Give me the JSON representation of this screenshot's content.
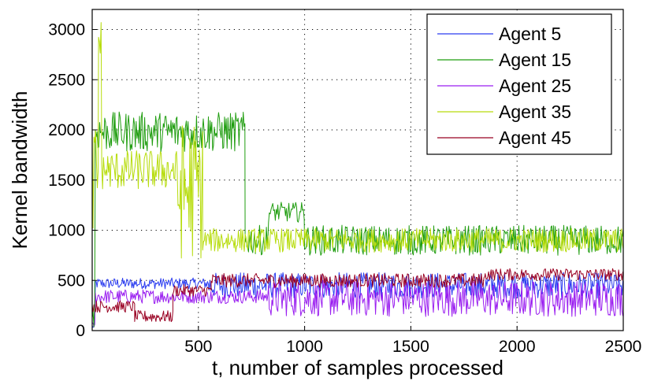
{
  "chart_data": {
    "type": "line",
    "title": "",
    "xlabel": "t, number of samples processed",
    "ylabel": "Kernel bandwidth",
    "xlim": [
      0,
      2500
    ],
    "ylim": [
      0,
      3200
    ],
    "xticks": [
      500,
      1000,
      1500,
      2000,
      2500
    ],
    "yticks": [
      0,
      500,
      1000,
      1500,
      2000,
      2500,
      3000
    ],
    "grid": true,
    "legend_position": "top-right",
    "series": [
      {
        "name": "Agent 5",
        "color": "#2a3cf0",
        "segments": [
          {
            "from": 0,
            "to": 15,
            "base": 40,
            "amp": 20
          },
          {
            "from": 15,
            "to": 550,
            "base": 470,
            "amp": 55
          },
          {
            "from": 550,
            "to": 2500,
            "base": 450,
            "amp": 130
          }
        ]
      },
      {
        "name": "Agent 15",
        "color": "#1f9d0f",
        "segments": [
          {
            "from": 0,
            "to": 15,
            "base": 200,
            "amp": 300
          },
          {
            "from": 15,
            "to": 720,
            "base": 1980,
            "amp": 200
          },
          {
            "from": 720,
            "to": 830,
            "base": 900,
            "amp": 150
          },
          {
            "from": 830,
            "to": 1000,
            "base": 1180,
            "amp": 100
          },
          {
            "from": 1000,
            "to": 2500,
            "base": 900,
            "amp": 150
          }
        ]
      },
      {
        "name": "Agent 25",
        "color": "#9a1ef0",
        "segments": [
          {
            "from": 0,
            "to": 15,
            "base": 50,
            "amp": 30
          },
          {
            "from": 15,
            "to": 830,
            "base": 340,
            "amp": 70
          },
          {
            "from": 830,
            "to": 2500,
            "base": 320,
            "amp": 180
          }
        ]
      },
      {
        "name": "Agent 35",
        "color": "#b6dc0a",
        "segments": [
          {
            "from": 0,
            "to": 30,
            "base": 1500,
            "amp": 600
          },
          {
            "from": 30,
            "to": 45,
            "base": 2900,
            "amp": 200
          },
          {
            "from": 45,
            "to": 400,
            "base": 1600,
            "amp": 200
          },
          {
            "from": 400,
            "to": 520,
            "base": 1400,
            "amp": 700
          },
          {
            "from": 520,
            "to": 2500,
            "base": 900,
            "amp": 120
          }
        ]
      },
      {
        "name": "Agent 45",
        "color": "#990022",
        "segments": [
          {
            "from": 0,
            "to": 200,
            "base": 240,
            "amp": 60
          },
          {
            "from": 200,
            "to": 380,
            "base": 140,
            "amp": 60
          },
          {
            "from": 380,
            "to": 560,
            "base": 400,
            "amp": 60
          },
          {
            "from": 560,
            "to": 1850,
            "base": 500,
            "amp": 70
          },
          {
            "from": 1850,
            "to": 2500,
            "base": 560,
            "amp": 60
          }
        ]
      }
    ]
  }
}
